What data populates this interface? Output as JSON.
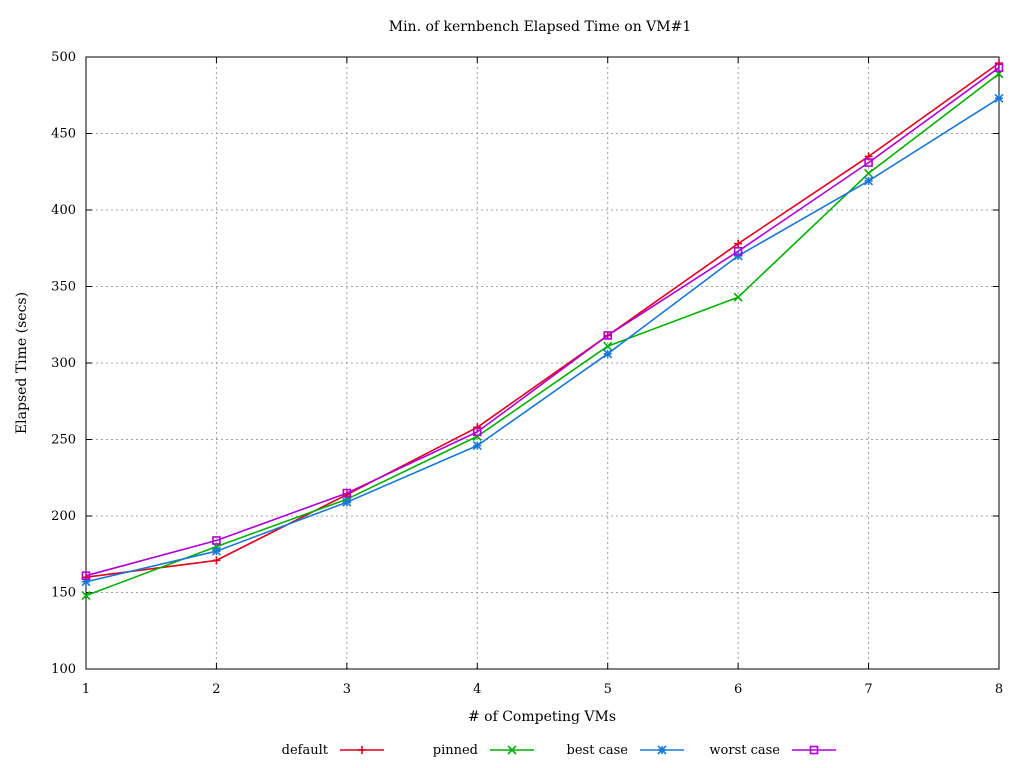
{
  "chart_data": {
    "type": "line",
    "title": "Min. of kernbench Elapsed Time on VM#1",
    "xlabel": "# of Competing VMs",
    "ylabel": "Elapsed Time (secs)",
    "x": [
      1,
      2,
      3,
      4,
      5,
      6,
      7,
      8
    ],
    "xlim": [
      1,
      8
    ],
    "ylim": [
      100,
      500
    ],
    "x_ticks": [
      "1",
      "2",
      "3",
      "4",
      "5",
      "6",
      "7",
      "8"
    ],
    "y_ticks": [
      "100",
      "150",
      "200",
      "250",
      "300",
      "350",
      "400",
      "450",
      "500"
    ],
    "grid": true,
    "legend_position": "bottom",
    "series": [
      {
        "name": "default",
        "color": "#e0001a",
        "marker": "plus",
        "values": [
          160,
          171,
          214,
          258,
          318,
          378,
          435,
          496
        ]
      },
      {
        "name": "pinned",
        "color": "#00b000",
        "marker": "cross",
        "values": [
          148,
          180,
          211,
          252,
          311,
          343,
          424,
          489
        ]
      },
      {
        "name": "best case",
        "color": "#1878d8",
        "marker": "star",
        "values": [
          157,
          177,
          209,
          246,
          306,
          370,
          419,
          473
        ]
      },
      {
        "name": "worst case",
        "color": "#b000d8",
        "marker": "open-square",
        "values": [
          161,
          184,
          215,
          255,
          318,
          373,
          431,
          493
        ]
      }
    ]
  }
}
